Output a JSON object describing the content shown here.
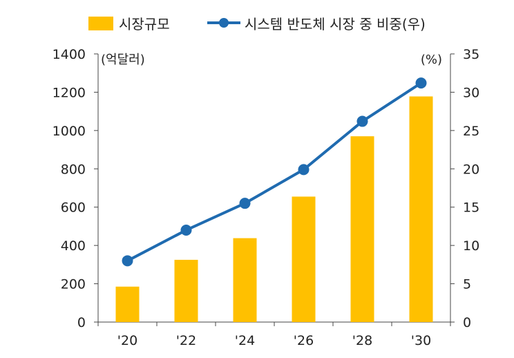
{
  "chart_data": {
    "type": "bar+line",
    "categories": [
      "'20",
      "'22",
      "'24",
      "'26",
      "'28",
      "'30"
    ],
    "series": [
      {
        "name": "시장규모",
        "type": "bar",
        "axis": "left",
        "color": "#FFC000",
        "values": [
          185,
          325,
          438,
          655,
          970,
          1178
        ]
      },
      {
        "name": "시스템 반도체 시장 중 비중(우)",
        "type": "line",
        "axis": "right",
        "color": "#1F6BB0",
        "values": [
          8.0,
          12.0,
          15.5,
          19.9,
          26.2,
          31.2
        ]
      }
    ],
    "left_axis": {
      "unit": "(억달러)",
      "min": 0,
      "max": 1400,
      "step": 200
    },
    "right_axis": {
      "unit": "(%)",
      "min": 0,
      "max": 35,
      "step": 5
    },
    "legend_position": "top",
    "grid": false
  }
}
